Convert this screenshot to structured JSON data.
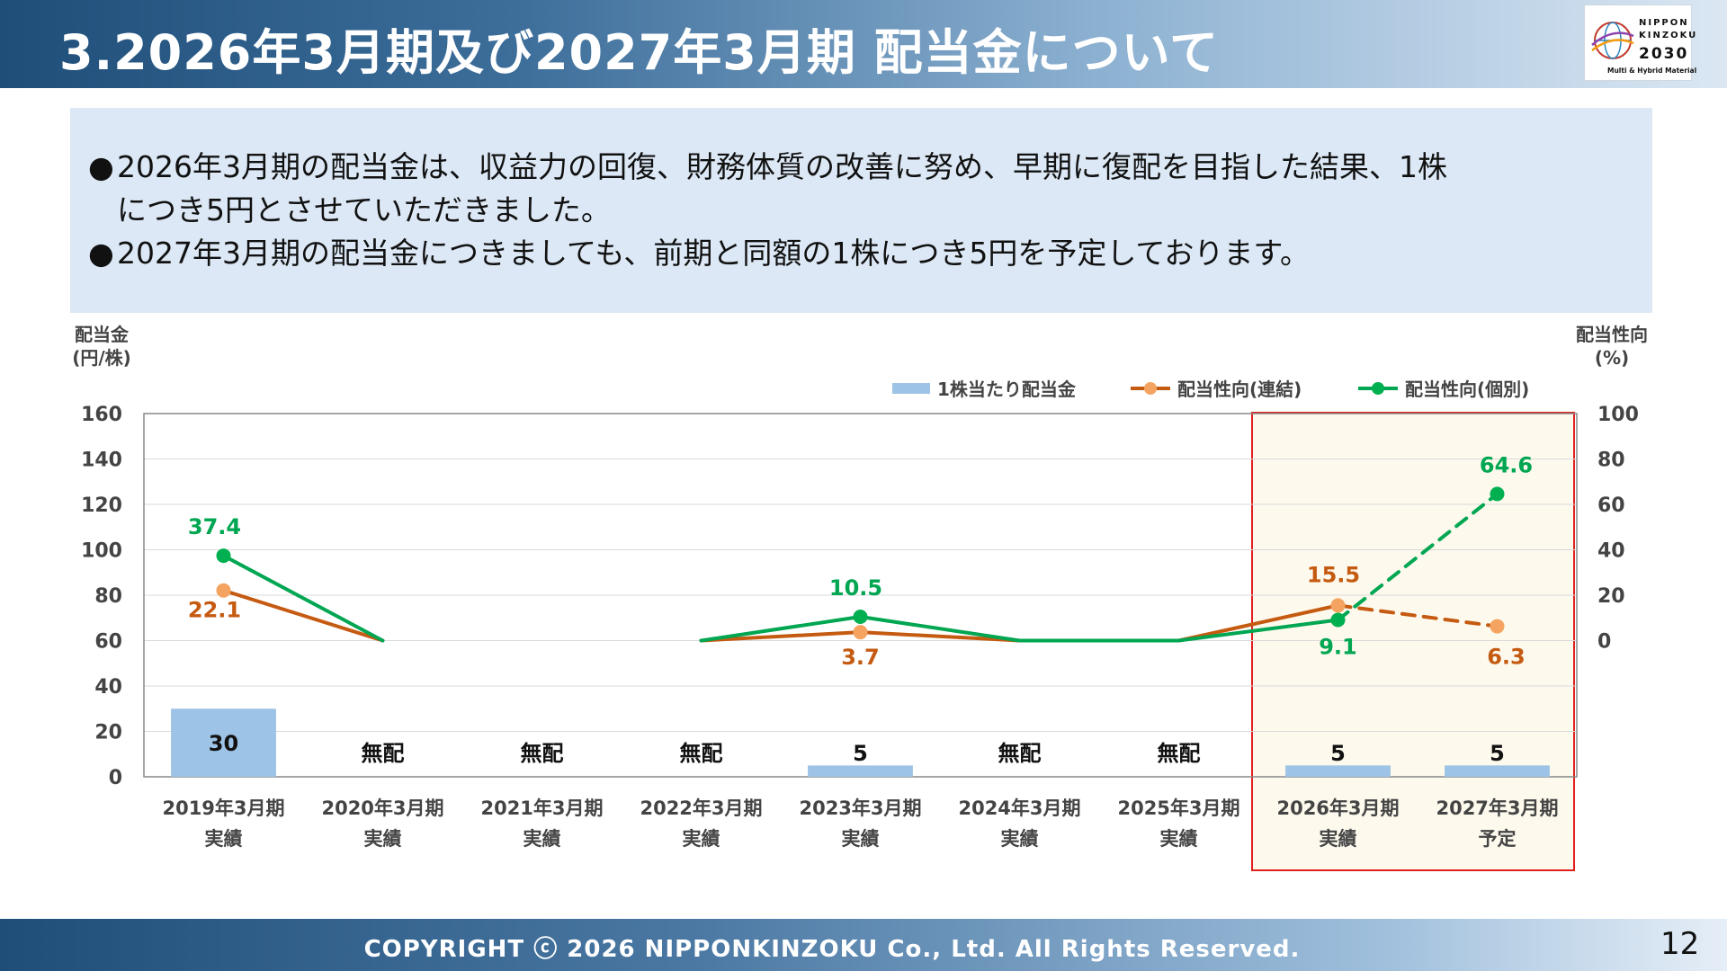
{
  "header": {
    "title": "3.2026年3月期及び2027年3月期 配当金について"
  },
  "logo": {
    "line1": "NIPPON",
    "line2": "KINZOKU",
    "line3": "2030",
    "line4": "Multi & Hybrid Material"
  },
  "notes": [
    {
      "bullet": "●",
      "text": "2026年3月期の配当金は、収益力の回復、財務体質の改善に努め、早期に復配を目指した結果、1株につき5円とさせていただきました。"
    },
    {
      "bullet": "●",
      "text": "2027年3月期の配当金につきましても、前期と同額の1株につき5円を予定しております。"
    }
  ],
  "chart_data": {
    "type": "bar",
    "ylabel": "配当金\n(円/株)",
    "y2label": "配当性向\n(%)",
    "ylim": [
      0,
      160
    ],
    "y2lim": [
      -60,
      100
    ],
    "yticks": [
      "0",
      "20",
      "40",
      "60",
      "80",
      "100",
      "120",
      "140",
      "160"
    ],
    "y2ticks": [
      "0",
      "20",
      "40",
      "60",
      "80",
      "100"
    ],
    "categories": [
      [
        "2019年3月期",
        "実績"
      ],
      [
        "2020年3月期",
        "実績"
      ],
      [
        "2021年3月期",
        "実績"
      ],
      [
        "2022年3月期",
        "実績"
      ],
      [
        "2023年3月期",
        "実績"
      ],
      [
        "2024年3月期",
        "実績"
      ],
      [
        "2025年3月期",
        "実績"
      ],
      [
        "2026年3月期",
        "実績"
      ],
      [
        "2027年3月期",
        "予定"
      ]
    ],
    "legend": [
      "1株当たり配当金",
      "配当性向(連結)",
      "配当性向(個別)"
    ],
    "legend_position": "top-right",
    "series": [
      {
        "name": "1株当たり配当金",
        "kind": "bar",
        "color": "#9dc3e6",
        "values": [
          30,
          0,
          0,
          0,
          5,
          0,
          0,
          5,
          5
        ],
        "labels": [
          "30",
          "無配",
          "無配",
          "無配",
          "5",
          "無配",
          "無配",
          "5",
          "5"
        ]
      },
      {
        "name": "配当性向(連結)",
        "kind": "line",
        "color": "#c55a11",
        "marker": "#f4a460",
        "values": [
          22.1,
          0,
          null,
          0,
          3.7,
          0,
          0,
          15.5,
          6.3
        ],
        "labels": [
          "22.1",
          "",
          "",
          "",
          "3.7",
          "",
          "",
          "15.5",
          "6.3"
        ]
      },
      {
        "name": "配当性向(個別)",
        "kind": "line",
        "color": "#00a651",
        "marker": "#00b050",
        "values": [
          37.4,
          0,
          null,
          0,
          10.5,
          0,
          0,
          9.1,
          64.6
        ],
        "labels": [
          "37.4",
          "",
          "",
          "",
          "10.5",
          "",
          "",
          "9.1",
          "64.6"
        ]
      }
    ],
    "forecast_from_index": 7,
    "highlight_categories": [
      7,
      8
    ],
    "highlight_color": "#fdf9ed",
    "highlight_border": "#e0201e"
  },
  "footer": {
    "copyright": "COPYRIGHT ⓒ 2026 NIPPONKINZOKU Co., Ltd. All Rights Reserved.",
    "page": "12"
  }
}
